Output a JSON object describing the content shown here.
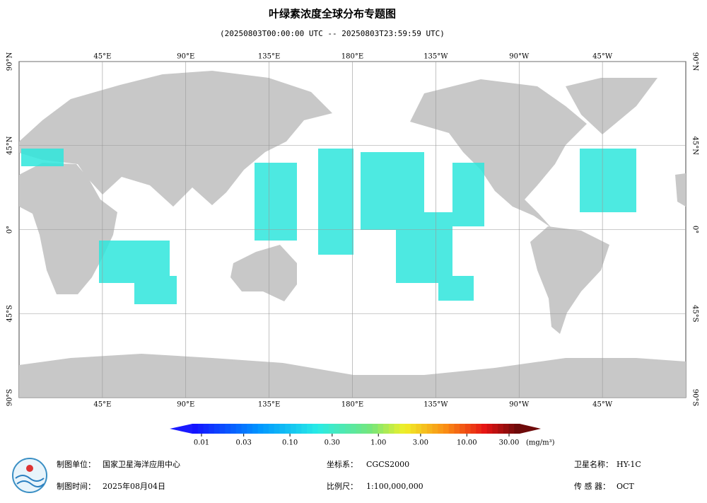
{
  "header": {
    "title": "叶绿素浓度全球分布专题图",
    "subtitle": "(20250803T00:00:00 UTC -- 20250803T23:59:59 UTC)"
  },
  "map": {
    "lonlim": [
      0,
      360
    ],
    "latlim": [
      -90,
      90
    ],
    "lonticks": [
      {
        "value": 45,
        "label": "45°E"
      },
      {
        "value": 90,
        "label": "90°E"
      },
      {
        "value": 135,
        "label": "135°E"
      },
      {
        "value": 180,
        "label": "180°E"
      },
      {
        "value": 225,
        "label": "135°W"
      },
      {
        "value": 270,
        "label": "90°W"
      },
      {
        "value": 315,
        "label": "45°W"
      }
    ],
    "latticks": [
      {
        "value": 90,
        "label": "90°N"
      },
      {
        "value": 45,
        "label": "45°N"
      },
      {
        "value": 0,
        "label": "0°"
      },
      {
        "value": -45,
        "label": "45°S"
      },
      {
        "value": -90,
        "label": "90°S"
      }
    ],
    "grid": true
  },
  "colorbar": {
    "scale": "log",
    "lim": [
      0.01,
      30
    ],
    "ticks": [
      {
        "value": 0.01,
        "label": "0.01"
      },
      {
        "value": 0.03,
        "label": "0.03"
      },
      {
        "value": 0.1,
        "label": "0.10"
      },
      {
        "value": 0.3,
        "label": "0.30"
      },
      {
        "value": 1,
        "label": "1.00"
      },
      {
        "value": 3,
        "label": "3.00"
      },
      {
        "value": 10,
        "label": "10.00"
      },
      {
        "value": 30,
        "label": "30.00"
      }
    ],
    "unit": "(mg/m³)"
  },
  "footer": {
    "fields": [
      {
        "label": "制图单位：",
        "value": "国家卫星海洋应用中心"
      },
      {
        "label": "制图时间：",
        "value": "2025年08月04日"
      },
      {
        "label": "坐标系：",
        "value": "CGCS2000"
      },
      {
        "label": "比例尺：",
        "value": "1:100,000,000"
      },
      {
        "label": "卫星名称：",
        "value": "HY-1C"
      },
      {
        "label": "传 感 器：",
        "value": "OCT"
      }
    ]
  }
}
